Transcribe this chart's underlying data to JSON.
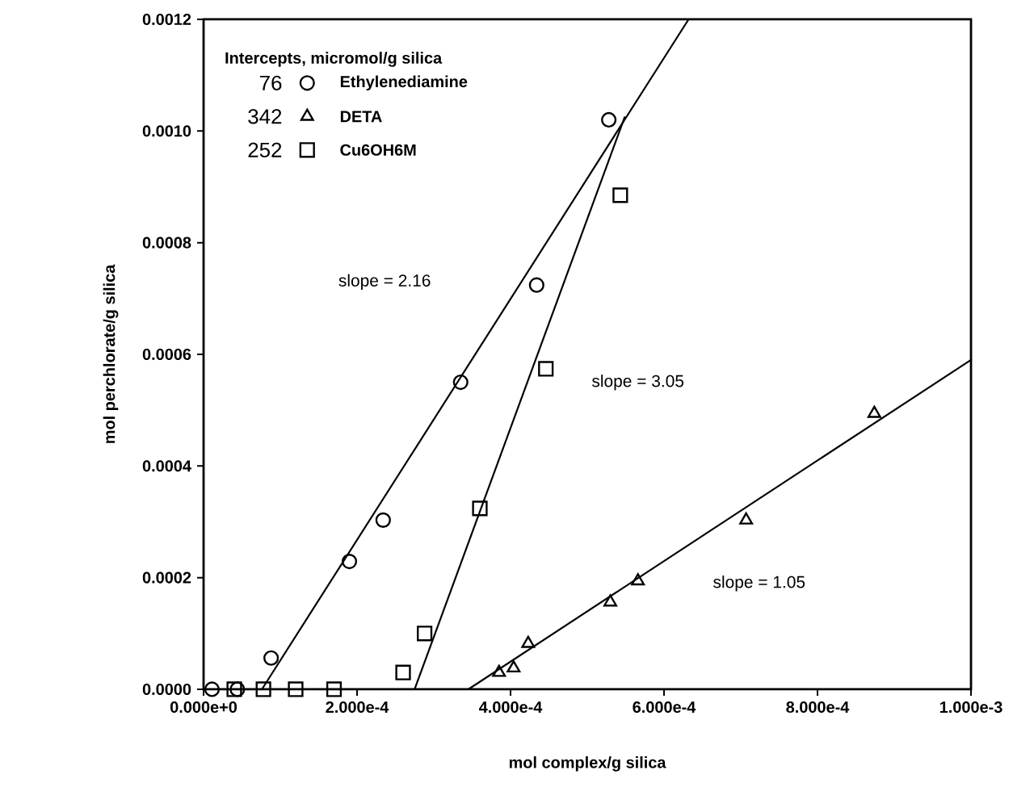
{
  "chart_data": {
    "type": "scatter",
    "xlabel": "mol complex/g silica",
    "ylabel": "mol perchlorate/g silica",
    "legend_title": "Intercepts, micromol/g silica",
    "xlim": [
      0,
      0.001
    ],
    "ylim": [
      0,
      0.0012
    ],
    "xticks": [
      {
        "value": 0,
        "label": "0.000e+0"
      },
      {
        "value": 0.0002,
        "label": "2.000e-4"
      },
      {
        "value": 0.0004,
        "label": "4.000e-4"
      },
      {
        "value": 0.0006,
        "label": "6.000e-4"
      },
      {
        "value": 0.0008,
        "label": "8.000e-4"
      },
      {
        "value": 0.001,
        "label": "1.000e-3"
      }
    ],
    "yticks": [
      {
        "value": 0,
        "label": "0.0000"
      },
      {
        "value": 0.0002,
        "label": "0.0002"
      },
      {
        "value": 0.0004,
        "label": "0.0004"
      },
      {
        "value": 0.0006,
        "label": "0.0006"
      },
      {
        "value": 0.0008,
        "label": "0.0008"
      },
      {
        "value": 0.001,
        "label": "0.0010"
      },
      {
        "value": 0.0012,
        "label": "0.0012"
      }
    ],
    "legend": "top left",
    "grid": false,
    "series": [
      {
        "name": "Ethylenediamine",
        "color": "#000000",
        "marker": "circle",
        "x": [
          1.1e-05,
          4.4e-05,
          8.8e-05,
          0.00019,
          0.000234,
          0.000335,
          0.000434,
          0.000528
        ],
        "values": [
          0,
          0,
          5.6e-05,
          0.000229,
          0.000303,
          0.00055,
          0.000724,
          0.00102
        ]
      },
      {
        "name": "DETA",
        "color": "#000000",
        "marker": "triangle",
        "x": [
          0.000385,
          0.000404,
          0.000423,
          0.00053,
          0.000566,
          0.000707,
          0.000874
        ],
        "values": [
          3e-05,
          3.8e-05,
          8.2e-05,
          0.000156,
          0.000194,
          0.000303,
          0.000494
        ]
      },
      {
        "name": "Cu6OH6M",
        "color": "#000000",
        "marker": "square",
        "x": [
          4e-05,
          7.8e-05,
          0.00012,
          0.00017,
          0.00026,
          0.000288,
          0.00036,
          0.000446,
          0.000543
        ],
        "values": [
          0,
          0,
          0,
          0,
          3e-05,
          0.0001,
          0.000324,
          0.000574,
          0.000885
        ]
      },
      {
        "type": "line",
        "color": "#000000",
        "x": [
          7.6e-05,
          0.000632
        ],
        "values": [
          0,
          0.0012
        ]
      },
      {
        "type": "line",
        "color": "#000000",
        "x": [
          0.000345,
          0.001
        ],
        "values": [
          0,
          0.00059
        ]
      },
      {
        "type": "line",
        "color": "#000000",
        "x": [
          0.000275,
          0.000549
        ],
        "values": [
          0,
          0.001026
        ]
      }
    ],
    "annotations": [
      "76",
      "342",
      "252",
      "slope = 2.16",
      "slope = 3.05",
      "slope = 1.05"
    ]
  }
}
